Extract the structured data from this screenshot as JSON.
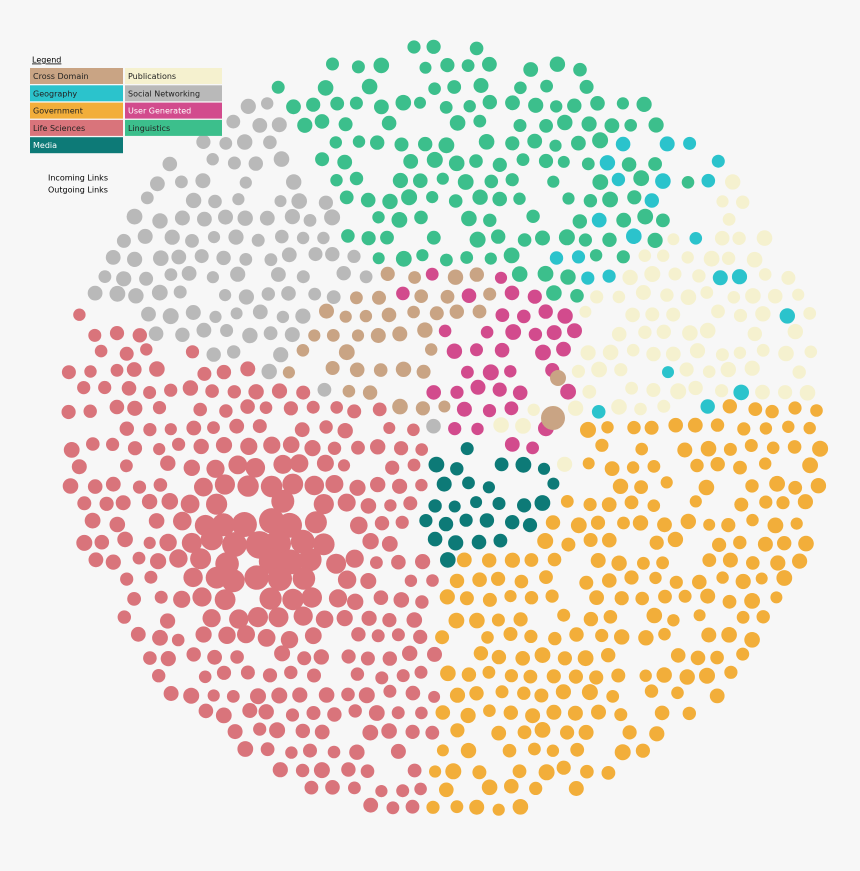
{
  "legend": {
    "title": "Legend",
    "items": [
      {
        "label": "Cross Domain",
        "color": "#c9a484"
      },
      {
        "label": "Publications",
        "color": "#f5f1cf"
      },
      {
        "label": "Geography",
        "color": "#2bc3cc"
      },
      {
        "label": "Social Networking",
        "color": "#b9b9b9"
      },
      {
        "label": "Government",
        "color": "#f2ae3a"
      },
      {
        "label": "User Generated",
        "color": "#d24b8d"
      },
      {
        "label": "Life Sciences",
        "color": "#d9747b"
      },
      {
        "label": "Linguistics",
        "color": "#3cbf8c"
      },
      {
        "label": "Media",
        "color": "#0d7a77"
      }
    ],
    "links": [
      "Incoming Links",
      "Outgoing Links"
    ]
  }
}
